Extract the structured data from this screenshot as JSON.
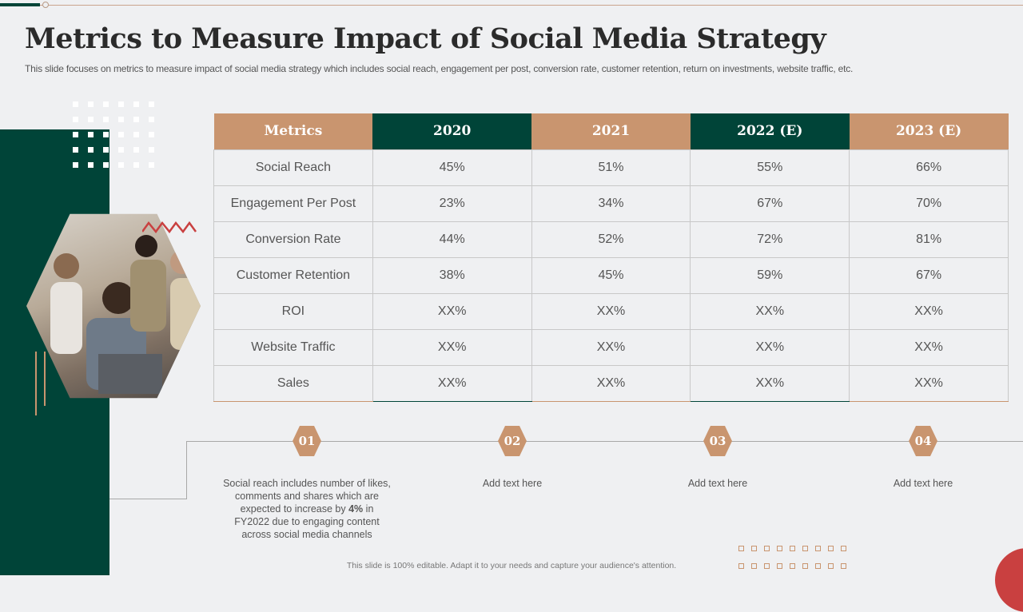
{
  "title": "Metrics to Measure Impact of Social Media Strategy",
  "subtitle": "This slide focuses on metrics to measure impact of social media strategy which includes social reach, engagement per post, conversion rate, customer retention, return on investments, website traffic, etc.",
  "table": {
    "headers": [
      "Metrics",
      "2020",
      "2021",
      "2022 (E)",
      "2023 (E)"
    ],
    "rows": [
      [
        "Social Reach",
        "45%",
        "51%",
        "55%",
        "66%"
      ],
      [
        "Engagement Per Post",
        "23%",
        "34%",
        "67%",
        "70%"
      ],
      [
        "Conversion Rate",
        "44%",
        "52%",
        "72%",
        "81%"
      ],
      [
        "Customer Retention",
        "38%",
        "45%",
        "59%",
        "67%"
      ],
      [
        "ROI",
        "XX%",
        "XX%",
        "XX%",
        "XX%"
      ],
      [
        "Website Traffic",
        "XX%",
        "XX%",
        "XX%",
        "XX%"
      ],
      [
        "Sales",
        "XX%",
        "XX%",
        "XX%",
        "XX%"
      ]
    ]
  },
  "steps": [
    {
      "num": "01",
      "pre": "Social reach includes number of likes, comments and shares which are expected to increase by ",
      "bold": "4%",
      "post": " in FY2022 due to engaging content across social media channels"
    },
    {
      "num": "02",
      "text": "Add text here"
    },
    {
      "num": "03",
      "text": "Add text here"
    },
    {
      "num": "04",
      "text": "Add text here"
    }
  ],
  "footer": "This slide is 100% editable. Adapt it to your needs and capture your audience's attention.",
  "colors": {
    "green": "#004438",
    "tan": "#c9956f",
    "red": "#c94040"
  }
}
